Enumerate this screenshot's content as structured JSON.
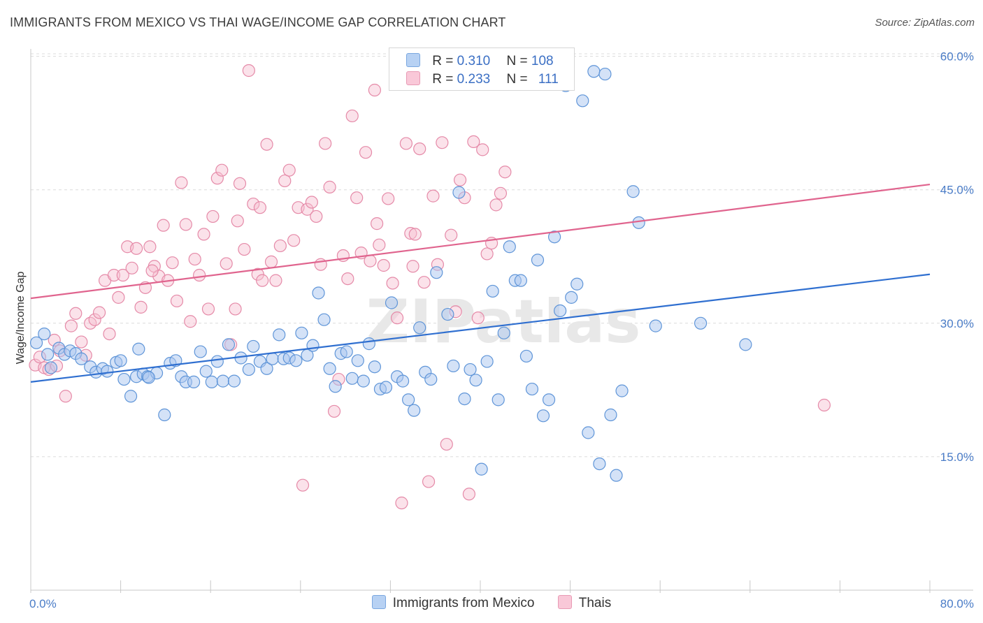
{
  "title": "IMMIGRANTS FROM MEXICO VS THAI WAGE/INCOME GAP CORRELATION CHART",
  "source": "Source: ZipAtlas.com",
  "watermark": "ZIPatlas",
  "legend_top": [
    {
      "r_label": "R =",
      "r_value": "0.310",
      "n_label": "N =",
      "n_value": "108"
    },
    {
      "r_label": "R =",
      "r_value": "0.233",
      "n_label": "N =",
      "n_value": "111"
    }
  ],
  "colors": {
    "blue_fill": "#a9c6ef",
    "blue_stroke": "#5f95d8",
    "blue_line": "#2f6fd0",
    "pink_fill": "#f6bfd1",
    "pink_stroke": "#e58aa8",
    "pink_line": "#e0648e",
    "axis_text": "#4a7cc7",
    "grid": "#dcdcdc"
  },
  "chart_data": {
    "type": "scatter",
    "title": "IMMIGRANTS FROM MEXICO VS THAI WAGE/INCOME GAP CORRELATION CHART",
    "xlabel": "",
    "ylabel": "Wage/Income Gap",
    "xlim": [
      0,
      80
    ],
    "ylim": [
      0,
      63
    ],
    "x_tick_labels": [
      "0.0%",
      "80.0%"
    ],
    "y_ticks": [
      15,
      30,
      45,
      60
    ],
    "y_tick_labels": [
      "15.0%",
      "30.0%",
      "45.0%",
      "60.0%"
    ],
    "grid": true,
    "legend_position": "bottom",
    "series": [
      {
        "name": "Immigrants from Mexico",
        "color": "#a9c6ef",
        "trend": [
          [
            0,
            23.4
          ],
          [
            80,
            35.5
          ]
        ],
        "points": [
          [
            0.5,
            27.8
          ],
          [
            1.2,
            28.8
          ],
          [
            1.5,
            26.5
          ],
          [
            1.8,
            25.0
          ],
          [
            2.5,
            27.2
          ],
          [
            3.0,
            26.5
          ],
          [
            3.5,
            26.9
          ],
          [
            4.0,
            26.6
          ],
          [
            5.3,
            25.1
          ],
          [
            5.8,
            24.5
          ],
          [
            6.4,
            24.9
          ],
          [
            6.8,
            24.6
          ],
          [
            7.6,
            25.6
          ],
          [
            8.0,
            25.8
          ],
          [
            8.3,
            23.7
          ],
          [
            8.9,
            21.8
          ],
          [
            9.4,
            24.0
          ],
          [
            9.6,
            27.1
          ],
          [
            10.0,
            24.3
          ],
          [
            10.4,
            24.0
          ],
          [
            11.2,
            24.4
          ],
          [
            11.9,
            19.7
          ],
          [
            12.4,
            25.5
          ],
          [
            12.9,
            25.8
          ],
          [
            13.4,
            24.0
          ],
          [
            13.8,
            23.4
          ],
          [
            14.5,
            23.4
          ],
          [
            15.1,
            26.8
          ],
          [
            15.6,
            24.6
          ],
          [
            16.1,
            23.4
          ],
          [
            16.6,
            25.7
          ],
          [
            17.1,
            23.5
          ],
          [
            17.6,
            27.6
          ],
          [
            18.1,
            23.5
          ],
          [
            18.7,
            26.1
          ],
          [
            19.4,
            24.8
          ],
          [
            19.8,
            27.4
          ],
          [
            20.4,
            25.7
          ],
          [
            21.0,
            24.9
          ],
          [
            21.5,
            26.0
          ],
          [
            22.1,
            28.7
          ],
          [
            22.5,
            26.0
          ],
          [
            23.0,
            26.1
          ],
          [
            23.6,
            25.8
          ],
          [
            24.1,
            28.9
          ],
          [
            24.6,
            26.4
          ],
          [
            25.1,
            27.5
          ],
          [
            25.6,
            33.4
          ],
          [
            26.1,
            30.4
          ],
          [
            26.6,
            24.9
          ],
          [
            27.1,
            22.9
          ],
          [
            27.6,
            26.6
          ],
          [
            28.1,
            26.8
          ],
          [
            28.6,
            23.8
          ],
          [
            29.1,
            25.8
          ],
          [
            29.6,
            23.5
          ],
          [
            30.1,
            27.7
          ],
          [
            30.6,
            25.1
          ],
          [
            31.1,
            22.6
          ],
          [
            31.6,
            22.8
          ],
          [
            32.1,
            32.3
          ],
          [
            32.6,
            24.0
          ],
          [
            33.1,
            23.5
          ],
          [
            33.6,
            21.4
          ],
          [
            34.1,
            20.2
          ],
          [
            34.6,
            29.5
          ],
          [
            35.1,
            24.5
          ],
          [
            35.6,
            23.7
          ],
          [
            36.1,
            35.7
          ],
          [
            37.1,
            31.0
          ],
          [
            37.6,
            25.2
          ],
          [
            38.1,
            44.7
          ],
          [
            38.6,
            21.5
          ],
          [
            39.1,
            24.8
          ],
          [
            39.6,
            23.6
          ],
          [
            40.1,
            13.6
          ],
          [
            40.6,
            25.7
          ],
          [
            41.1,
            33.6
          ],
          [
            41.6,
            21.4
          ],
          [
            42.1,
            28.9
          ],
          [
            42.6,
            38.6
          ],
          [
            43.1,
            34.8
          ],
          [
            43.6,
            34.8
          ],
          [
            44.1,
            26.3
          ],
          [
            44.6,
            22.6
          ],
          [
            45.1,
            37.1
          ],
          [
            45.6,
            19.6
          ],
          [
            46.1,
            21.4
          ],
          [
            46.6,
            39.7
          ],
          [
            47.1,
            31.4
          ],
          [
            47.6,
            56.7
          ],
          [
            48.1,
            32.9
          ],
          [
            48.6,
            34.4
          ],
          [
            49.1,
            55.0
          ],
          [
            49.6,
            17.7
          ],
          [
            50.1,
            58.3
          ],
          [
            50.6,
            14.2
          ],
          [
            51.1,
            58.0
          ],
          [
            51.6,
            19.7
          ],
          [
            52.1,
            12.9
          ],
          [
            52.6,
            22.4
          ],
          [
            53.6,
            44.8
          ],
          [
            54.1,
            41.3
          ],
          [
            55.6,
            29.7
          ],
          [
            59.6,
            30.0
          ],
          [
            63.6,
            27.6
          ],
          [
            4.5,
            26.0
          ],
          [
            10.5,
            23.9
          ]
        ]
      },
      {
        "name": "Thais",
        "color": "#f6bfd1",
        "trend": [
          [
            0,
            32.8
          ],
          [
            80,
            45.6
          ]
        ],
        "points": [
          [
            0.4,
            25.3
          ],
          [
            0.8,
            26.2
          ],
          [
            1.2,
            25.0
          ],
          [
            1.6,
            24.8
          ],
          [
            2.1,
            28.1
          ],
          [
            2.6,
            26.9
          ],
          [
            3.1,
            21.8
          ],
          [
            3.6,
            29.7
          ],
          [
            4.0,
            31.1
          ],
          [
            4.5,
            27.9
          ],
          [
            4.9,
            26.4
          ],
          [
            5.3,
            30.0
          ],
          [
            5.7,
            30.4
          ],
          [
            6.1,
            31.2
          ],
          [
            6.6,
            34.8
          ],
          [
            7.0,
            28.8
          ],
          [
            7.4,
            35.4
          ],
          [
            7.8,
            32.9
          ],
          [
            8.2,
            35.4
          ],
          [
            8.6,
            38.6
          ],
          [
            9.0,
            36.2
          ],
          [
            9.4,
            38.4
          ],
          [
            9.8,
            31.8
          ],
          [
            10.2,
            34.0
          ],
          [
            10.6,
            38.6
          ],
          [
            11.0,
            36.4
          ],
          [
            11.4,
            35.3
          ],
          [
            11.8,
            41.0
          ],
          [
            12.2,
            34.8
          ],
          [
            12.6,
            36.8
          ],
          [
            13.0,
            32.5
          ],
          [
            13.4,
            45.8
          ],
          [
            13.8,
            41.1
          ],
          [
            14.2,
            30.2
          ],
          [
            14.6,
            37.2
          ],
          [
            15.0,
            35.4
          ],
          [
            15.4,
            40.0
          ],
          [
            15.8,
            31.6
          ],
          [
            16.2,
            42.0
          ],
          [
            16.6,
            46.3
          ],
          [
            17.0,
            47.2
          ],
          [
            17.4,
            36.7
          ],
          [
            17.8,
            27.6
          ],
          [
            18.2,
            31.6
          ],
          [
            18.6,
            45.7
          ],
          [
            19.0,
            38.3
          ],
          [
            19.4,
            58.4
          ],
          [
            19.8,
            43.4
          ],
          [
            20.2,
            35.5
          ],
          [
            20.6,
            34.8
          ],
          [
            21.0,
            50.1
          ],
          [
            21.4,
            36.9
          ],
          [
            21.8,
            34.8
          ],
          [
            22.2,
            38.7
          ],
          [
            22.6,
            46.0
          ],
          [
            23.0,
            47.2
          ],
          [
            23.4,
            39.3
          ],
          [
            23.8,
            43.0
          ],
          [
            24.2,
            11.8
          ],
          [
            24.6,
            42.8
          ],
          [
            25.0,
            43.6
          ],
          [
            25.4,
            42.0
          ],
          [
            25.8,
            36.6
          ],
          [
            26.2,
            50.2
          ],
          [
            26.6,
            45.3
          ],
          [
            27.0,
            20.1
          ],
          [
            27.4,
            23.7
          ],
          [
            27.8,
            37.6
          ],
          [
            28.2,
            35.0
          ],
          [
            28.6,
            53.3
          ],
          [
            29.0,
            44.1
          ],
          [
            29.4,
            37.9
          ],
          [
            29.8,
            49.2
          ],
          [
            30.2,
            37.0
          ],
          [
            30.6,
            56.2
          ],
          [
            31.0,
            38.8
          ],
          [
            31.4,
            36.5
          ],
          [
            31.8,
            44.0
          ],
          [
            32.2,
            34.5
          ],
          [
            32.6,
            30.6
          ],
          [
            33.0,
            9.8
          ],
          [
            33.4,
            50.2
          ],
          [
            33.8,
            40.1
          ],
          [
            34.2,
            40.0
          ],
          [
            34.6,
            49.6
          ],
          [
            35.0,
            34.6
          ],
          [
            35.4,
            12.2
          ],
          [
            35.8,
            44.3
          ],
          [
            36.2,
            36.6
          ],
          [
            36.6,
            50.3
          ],
          [
            37.0,
            16.4
          ],
          [
            37.4,
            39.9
          ],
          [
            37.8,
            31.3
          ],
          [
            38.2,
            46.1
          ],
          [
            38.6,
            44.1
          ],
          [
            39.0,
            10.8
          ],
          [
            39.4,
            50.4
          ],
          [
            39.8,
            30.6
          ],
          [
            40.2,
            49.5
          ],
          [
            40.6,
            37.8
          ],
          [
            41.0,
            39.0
          ],
          [
            41.4,
            43.3
          ],
          [
            41.8,
            44.6
          ],
          [
            42.2,
            47.0
          ],
          [
            70.6,
            20.8
          ],
          [
            2.3,
            25.2
          ],
          [
            10.8,
            35.9
          ],
          [
            20.4,
            43.0
          ],
          [
            18.4,
            41.5
          ],
          [
            34.0,
            36.4
          ],
          [
            30.8,
            41.2
          ]
        ]
      }
    ]
  }
}
